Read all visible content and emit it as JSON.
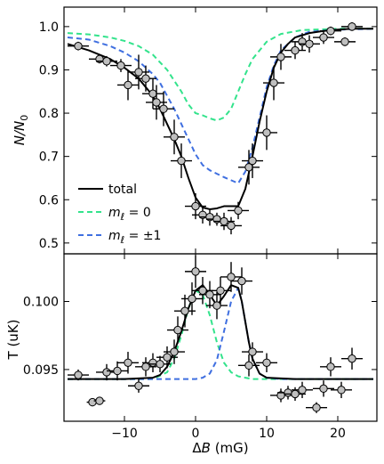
{
  "colors": {
    "total": "#000000",
    "m0": "#33e38c",
    "m1": "#3f6fe0",
    "marker_fill": "#bfbfbf"
  },
  "chart_data": [
    {
      "type": "line",
      "panel": "top",
      "ylabel": "N/N0",
      "ylabel_parts": {
        "main": "N/N",
        "sub": "0"
      },
      "xlim": [
        -18.5,
        25.5
      ],
      "ylim": [
        0.475,
        1.045
      ],
      "yticks": [
        0.5,
        0.6,
        0.7,
        0.8,
        0.9,
        1.0
      ],
      "ytick_labels": [
        "0.5",
        "0.6",
        "0.7",
        "0.8",
        "0.9",
        "1.0"
      ],
      "legend": {
        "position": "bottom-left",
        "entries": [
          {
            "key": "total",
            "label": "total"
          },
          {
            "key": "m0",
            "label": "mℓ = 0",
            "sym": "m",
            "sub": "ℓ",
            "rest": " = 0"
          },
          {
            "key": "m1",
            "label": "mℓ = ±1",
            "sym": "m",
            "sub": "ℓ",
            "rest": " = ±1"
          }
        ]
      },
      "series": [
        {
          "key": "total",
          "style": "solid",
          "x": [
            -18,
            -15,
            -12,
            -10,
            -8,
            -6,
            -5,
            -4,
            -3,
            -2,
            -1,
            0,
            1,
            2,
            3,
            4,
            5,
            6,
            7,
            8,
            9,
            10,
            11,
            12,
            13,
            14,
            16,
            18,
            20,
            22,
            25
          ],
          "y": [
            0.96,
            0.945,
            0.925,
            0.905,
            0.88,
            0.84,
            0.81,
            0.775,
            0.74,
            0.7,
            0.65,
            0.605,
            0.582,
            0.578,
            0.58,
            0.585,
            0.585,
            0.585,
            0.625,
            0.7,
            0.78,
            0.85,
            0.905,
            0.94,
            0.96,
            0.975,
            0.985,
            0.99,
            0.993,
            0.995,
            0.995
          ]
        },
        {
          "key": "m0",
          "style": "dashed",
          "x": [
            -18,
            -15,
            -12,
            -10,
            -8,
            -6,
            -4,
            -2,
            -1,
            0,
            1,
            2,
            3,
            4,
            5,
            6,
            7,
            8,
            10,
            12,
            15,
            20,
            25
          ],
          "y": [
            0.985,
            0.982,
            0.975,
            0.967,
            0.955,
            0.935,
            0.9,
            0.85,
            0.82,
            0.8,
            0.795,
            0.788,
            0.783,
            0.79,
            0.81,
            0.85,
            0.89,
            0.925,
            0.965,
            0.983,
            0.992,
            0.995,
            0.995
          ]
        },
        {
          "key": "m1",
          "style": "dashed",
          "x": [
            -18,
            -15,
            -12,
            -10,
            -8,
            -6,
            -5,
            -4,
            -3,
            -2,
            -1,
            0,
            1,
            2,
            3,
            4,
            5,
            6,
            7,
            8,
            9,
            10,
            11,
            12,
            14,
            16,
            20,
            25
          ],
          "y": [
            0.975,
            0.97,
            0.955,
            0.94,
            0.92,
            0.89,
            0.87,
            0.84,
            0.81,
            0.775,
            0.74,
            0.705,
            0.68,
            0.668,
            0.66,
            0.652,
            0.645,
            0.638,
            0.665,
            0.72,
            0.79,
            0.86,
            0.91,
            0.945,
            0.975,
            0.988,
            0.993,
            0.995
          ]
        }
      ],
      "points": [
        {
          "x": -16.5,
          "y": 0.955,
          "xerr": 1.5,
          "yerr": 0.01
        },
        {
          "x": -13.5,
          "y": 0.925,
          "xerr": 1.5,
          "yerr": 0.01
        },
        {
          "x": -12.5,
          "y": 0.92,
          "xerr": 1.5,
          "yerr": 0.012
        },
        {
          "x": -10.5,
          "y": 0.91,
          "xerr": 1.5,
          "yerr": 0.015
        },
        {
          "x": -9.5,
          "y": 0.865,
          "xerr": 1.5,
          "yerr": 0.035
        },
        {
          "x": -8,
          "y": 0.895,
          "xerr": 1.5,
          "yerr": 0.04
        },
        {
          "x": -7,
          "y": 0.88,
          "xerr": 1.5,
          "yerr": 0.03
        },
        {
          "x": -6,
          "y": 0.845,
          "xerr": 1.5,
          "yerr": 0.035
        },
        {
          "x": -5.5,
          "y": 0.825,
          "xerr": 1.5,
          "yerr": 0.04
        },
        {
          "x": -4.5,
          "y": 0.81,
          "xerr": 1.5,
          "yerr": 0.04
        },
        {
          "x": -3,
          "y": 0.745,
          "xerr": 1.5,
          "yerr": 0.04
        },
        {
          "x": -2,
          "y": 0.69,
          "xerr": 1.5,
          "yerr": 0.04
        },
        {
          "x": 0,
          "y": 0.585,
          "xerr": 1.5,
          "yerr": 0.03
        },
        {
          "x": 1,
          "y": 0.565,
          "xerr": 1.5,
          "yerr": 0.02
        },
        {
          "x": 2,
          "y": 0.56,
          "xerr": 1.5,
          "yerr": 0.02
        },
        {
          "x": 3,
          "y": 0.555,
          "xerr": 1.5,
          "yerr": 0.015
        },
        {
          "x": 4,
          "y": 0.55,
          "xerr": 1.5,
          "yerr": 0.02
        },
        {
          "x": 5,
          "y": 0.54,
          "xerr": 1.5,
          "yerr": 0.02
        },
        {
          "x": 6,
          "y": 0.575,
          "xerr": 1.5,
          "yerr": 0.02
        },
        {
          "x": 7.5,
          "y": 0.675,
          "xerr": 1.5,
          "yerr": 0.04
        },
        {
          "x": 8,
          "y": 0.69,
          "xerr": 1.5,
          "yerr": 0.04
        },
        {
          "x": 10,
          "y": 0.755,
          "xerr": 1.5,
          "yerr": 0.04
        },
        {
          "x": 11,
          "y": 0.87,
          "xerr": 1.5,
          "yerr": 0.04
        },
        {
          "x": 12,
          "y": 0.93,
          "xerr": 1.5,
          "yerr": 0.03
        },
        {
          "x": 14,
          "y": 0.945,
          "xerr": 1.5,
          "yerr": 0.02
        },
        {
          "x": 15,
          "y": 0.965,
          "xerr": 1.5,
          "yerr": 0.02
        },
        {
          "x": 16,
          "y": 0.96,
          "xerr": 1.5,
          "yerr": 0.02
        },
        {
          "x": 18,
          "y": 0.975,
          "xerr": 1.5,
          "yerr": 0.015
        },
        {
          "x": 19,
          "y": 0.99,
          "xerr": 1.5,
          "yerr": 0.01
        },
        {
          "x": 21,
          "y": 0.965,
          "xerr": 1.5,
          "yerr": 0.01
        },
        {
          "x": 22,
          "y": 1.0,
          "xerr": 1.5,
          "yerr": 0.01
        }
      ]
    },
    {
      "type": "line",
      "panel": "bottom",
      "xlabel": "ΔB (mG)",
      "xlabel_parts": {
        "delta": "Δ",
        "sym": "B",
        "rest": " (mG)"
      },
      "ylabel": "T (uK)",
      "xlim": [
        -18.5,
        25.5
      ],
      "ylim": [
        0.0912,
        0.1035
      ],
      "xticks": [
        -10,
        0,
        10,
        20
      ],
      "xtick_labels": [
        "−10",
        "0",
        "10",
        "20"
      ],
      "yticks": [
        0.095,
        0.1
      ],
      "ytick_labels": [
        "0.095",
        "0.100"
      ],
      "series": [
        {
          "key": "total",
          "style": "solid",
          "x": [
            -18,
            -10,
            -6,
            -5,
            -4,
            -3,
            -2,
            -1,
            0,
            1,
            2,
            3,
            4,
            5,
            6,
            6.5,
            7,
            7.5,
            8,
            9,
            10,
            14,
            20,
            25
          ],
          "y": [
            0.0943,
            0.0943,
            0.0944,
            0.0946,
            0.0952,
            0.0963,
            0.0978,
            0.0995,
            0.1008,
            0.1012,
            0.1005,
            0.0997,
            0.1004,
            0.1012,
            0.101,
            0.1,
            0.0985,
            0.097,
            0.0958,
            0.0947,
            0.0944,
            0.0943,
            0.0943,
            0.0943
          ]
        },
        {
          "key": "m0",
          "style": "dashed",
          "x": [
            -18,
            -6,
            -4,
            -3,
            -2,
            -1,
            0,
            1,
            2,
            3,
            4,
            5,
            6,
            8,
            12,
            20,
            25
          ],
          "y": [
            0.0943,
            0.0943,
            0.0948,
            0.0958,
            0.0975,
            0.0995,
            0.1008,
            0.1005,
            0.099,
            0.097,
            0.0955,
            0.0948,
            0.0945,
            0.0943,
            0.0943,
            0.0943,
            0.0943
          ]
        },
        {
          "key": "m1",
          "style": "dashed",
          "x": [
            -18,
            -2,
            0,
            1,
            2,
            3,
            4,
            5,
            6,
            6.5,
            7,
            7.5,
            8,
            9,
            10,
            12,
            20,
            25
          ],
          "y": [
            0.0943,
            0.0943,
            0.0943,
            0.0944,
            0.0947,
            0.0957,
            0.0978,
            0.1,
            0.101,
            0.1,
            0.0985,
            0.097,
            0.0958,
            0.0947,
            0.0944,
            0.0943,
            0.0943,
            0.0943
          ]
        }
      ],
      "points": [
        {
          "x": -16.5,
          "y": 0.0946,
          "xerr": 1.5,
          "yerr": 0.0004
        },
        {
          "x": -14.5,
          "y": 0.0926,
          "xerr": 0.8,
          "yerr": 0.0003
        },
        {
          "x": -13.5,
          "y": 0.0927,
          "xerr": 0.8,
          "yerr": 0.0003
        },
        {
          "x": -12.5,
          "y": 0.0948,
          "xerr": 1.5,
          "yerr": 0.0006
        },
        {
          "x": -11,
          "y": 0.0949,
          "xerr": 1.5,
          "yerr": 0.0007
        },
        {
          "x": -9.5,
          "y": 0.0955,
          "xerr": 1.5,
          "yerr": 0.0008
        },
        {
          "x": -8,
          "y": 0.0938,
          "xerr": 1.5,
          "yerr": 0.0005
        },
        {
          "x": -7,
          "y": 0.0952,
          "xerr": 1.5,
          "yerr": 0.0007
        },
        {
          "x": -6,
          "y": 0.0955,
          "xerr": 1.5,
          "yerr": 0.0007
        },
        {
          "x": -5,
          "y": 0.0954,
          "xerr": 1.5,
          "yerr": 0.0006
        },
        {
          "x": -4,
          "y": 0.0959,
          "xerr": 1.5,
          "yerr": 0.0008
        },
        {
          "x": -3,
          "y": 0.0963,
          "xerr": 1.5,
          "yerr": 0.0009
        },
        {
          "x": -2.5,
          "y": 0.0979,
          "xerr": 1.5,
          "yerr": 0.001
        },
        {
          "x": -1.5,
          "y": 0.0993,
          "xerr": 1.5,
          "yerr": 0.0012
        },
        {
          "x": -0.5,
          "y": 0.1002,
          "xerr": 1.5,
          "yerr": 0.0012
        },
        {
          "x": 0,
          "y": 0.1022,
          "xerr": 1.5,
          "yerr": 0.0012
        },
        {
          "x": 1,
          "y": 0.1008,
          "xerr": 1.5,
          "yerr": 0.001
        },
        {
          "x": 2,
          "y": 0.1005,
          "xerr": 1.5,
          "yerr": 0.001
        },
        {
          "x": 3,
          "y": 0.0997,
          "xerr": 1.5,
          "yerr": 0.001
        },
        {
          "x": 3.5,
          "y": 0.1008,
          "xerr": 1.5,
          "yerr": 0.001
        },
        {
          "x": 5,
          "y": 0.1018,
          "xerr": 1.5,
          "yerr": 0.0011
        },
        {
          "x": 6.5,
          "y": 0.1015,
          "xerr": 1.5,
          "yerr": 0.001
        },
        {
          "x": 7.5,
          "y": 0.0953,
          "xerr": 1.5,
          "yerr": 0.0008
        },
        {
          "x": 8,
          "y": 0.0963,
          "xerr": 1.5,
          "yerr": 0.0007
        },
        {
          "x": 10,
          "y": 0.0955,
          "xerr": 1.5,
          "yerr": 0.0007
        },
        {
          "x": 12,
          "y": 0.0931,
          "xerr": 1.5,
          "yerr": 0.0005
        },
        {
          "x": 13,
          "y": 0.0933,
          "xerr": 1.5,
          "yerr": 0.0005
        },
        {
          "x": 14,
          "y": 0.0932,
          "xerr": 1.5,
          "yerr": 0.0005
        },
        {
          "x": 15,
          "y": 0.0935,
          "xerr": 1.5,
          "yerr": 0.0006
        },
        {
          "x": 17,
          "y": 0.0922,
          "xerr": 1.5,
          "yerr": 0.0004
        },
        {
          "x": 18,
          "y": 0.0936,
          "xerr": 1.5,
          "yerr": 0.0006
        },
        {
          "x": 19,
          "y": 0.0952,
          "xerr": 1.5,
          "yerr": 0.0007
        },
        {
          "x": 20.5,
          "y": 0.0935,
          "xerr": 1.5,
          "yerr": 0.0006
        },
        {
          "x": 22,
          "y": 0.0958,
          "xerr": 1.5,
          "yerr": 0.0008
        }
      ]
    }
  ]
}
